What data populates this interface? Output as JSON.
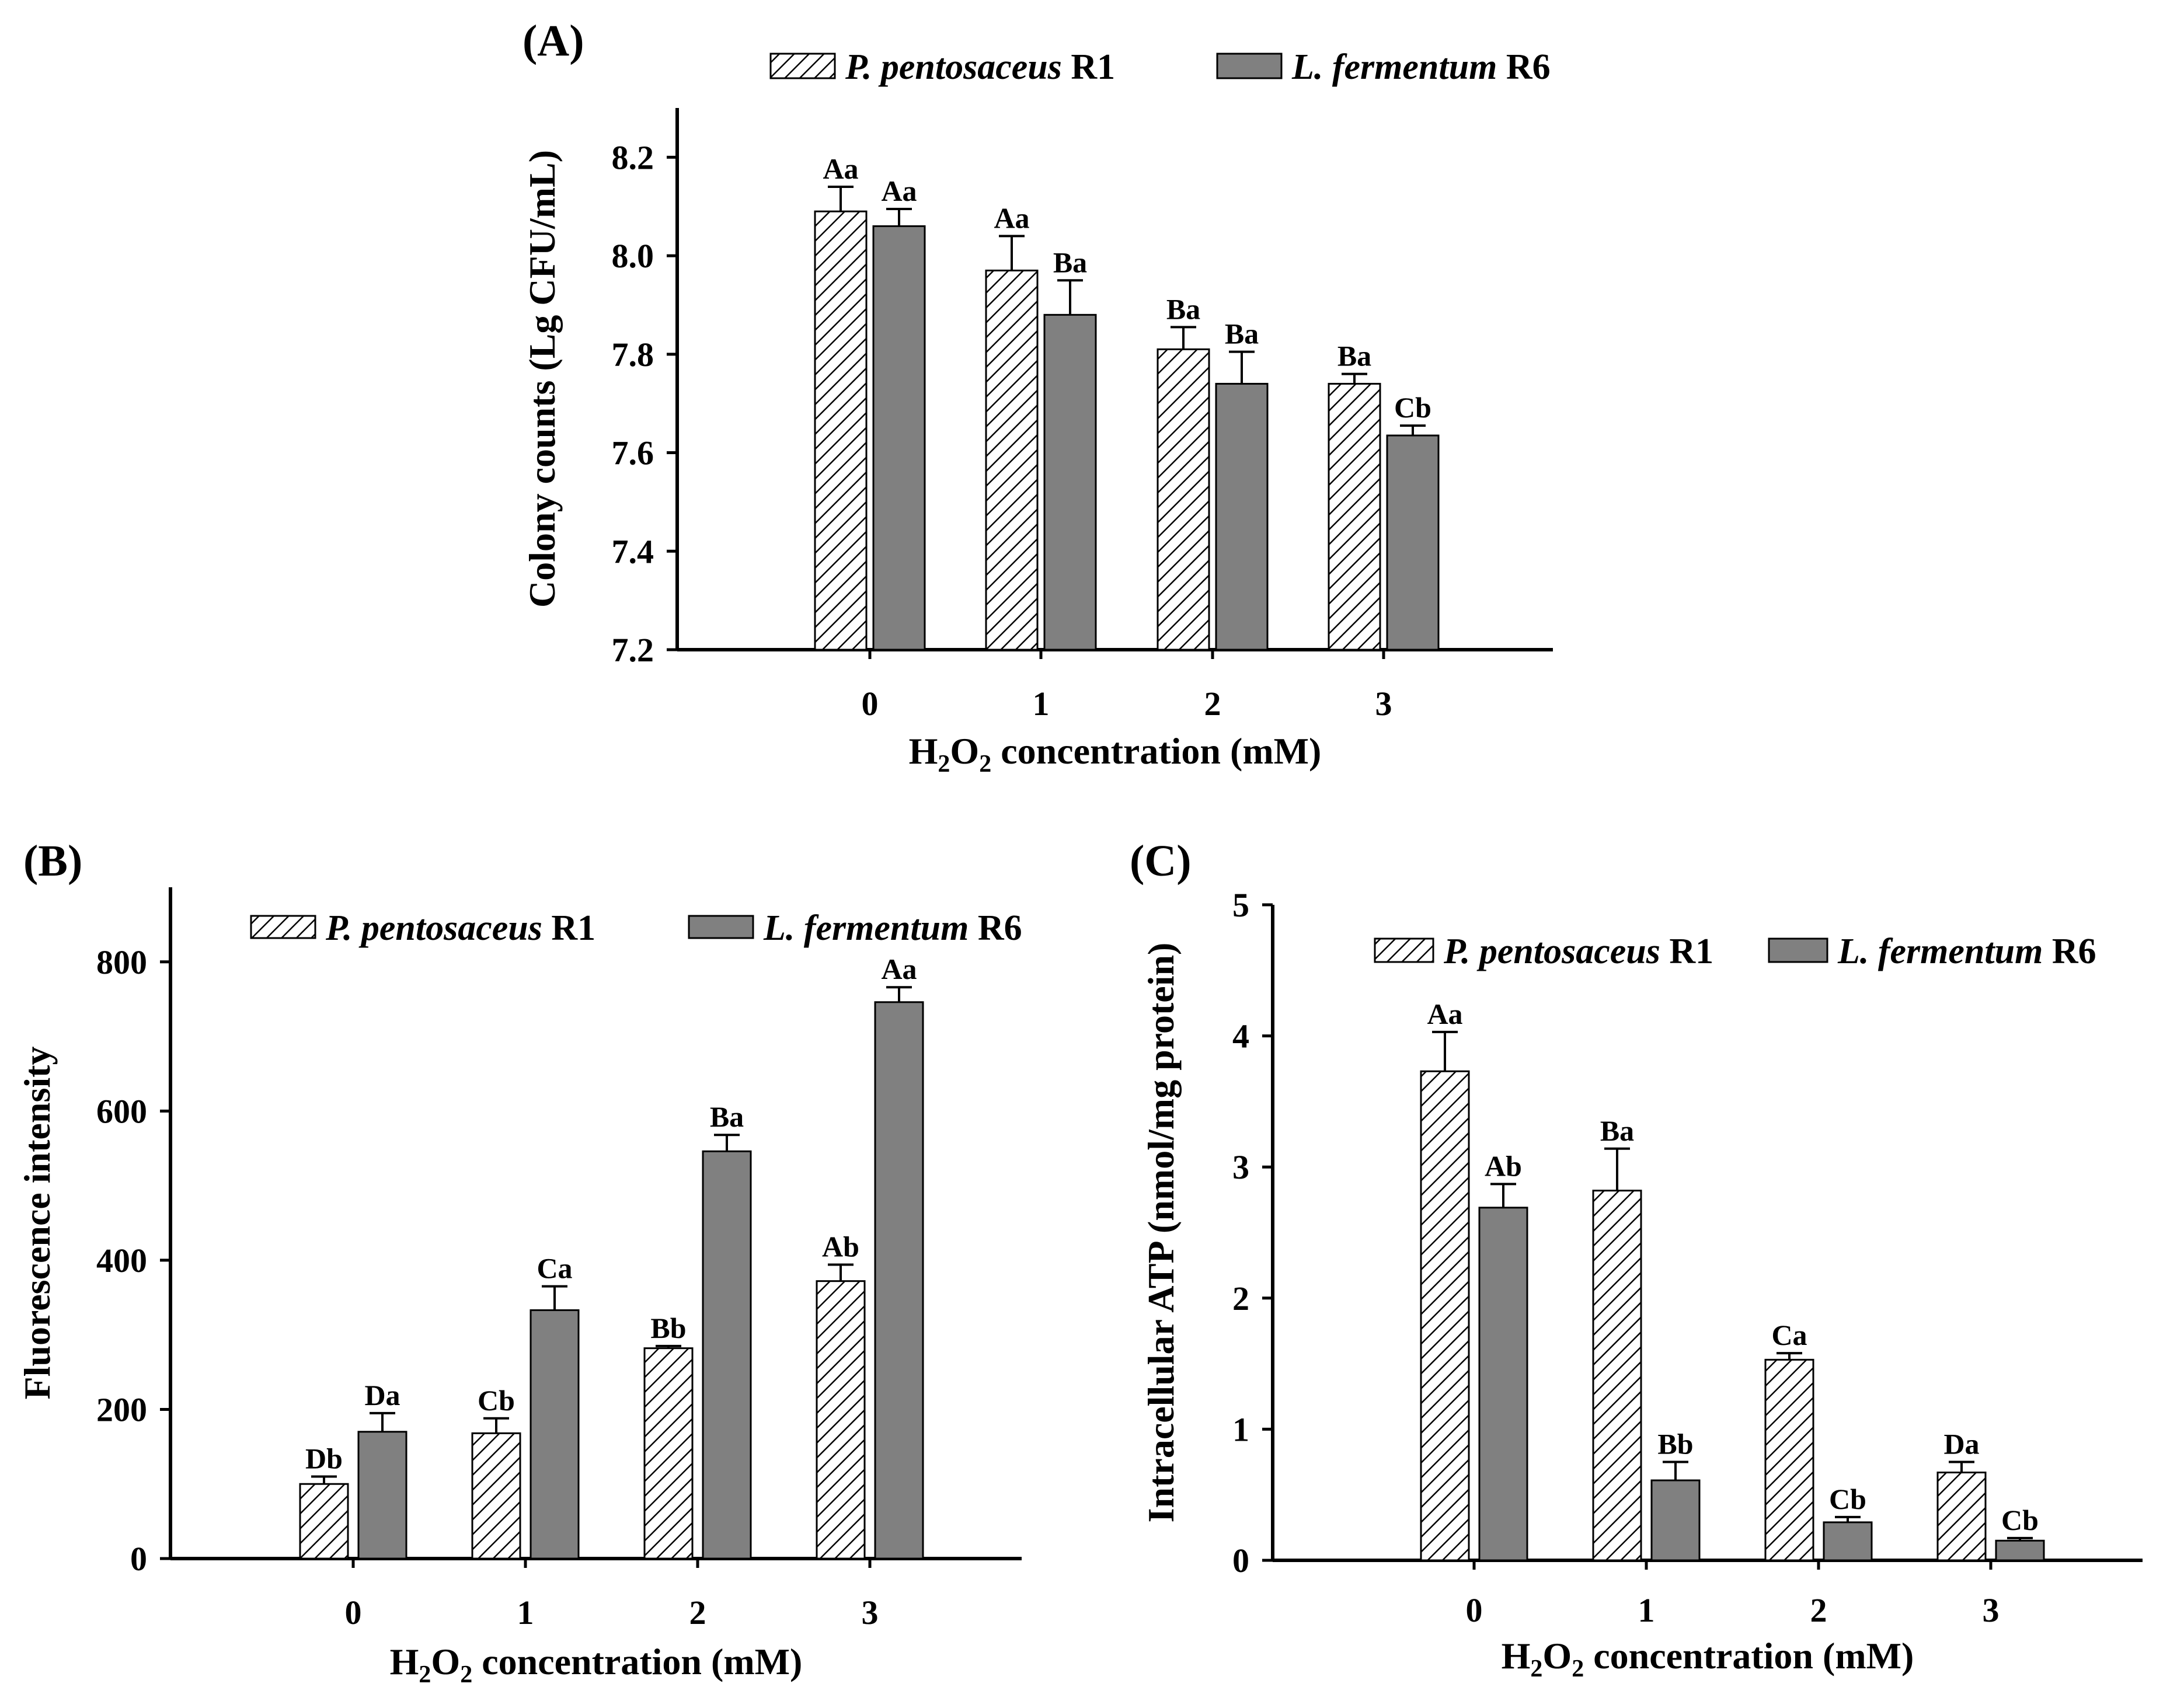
{
  "colors": {
    "series1_fill": "#ffffff",
    "series2_fill": "#808080",
    "stroke": "#000000"
  },
  "chart_data": [
    {
      "type": "bar",
      "panel": "(A)",
      "xlabel_prefix": "H",
      "xlabel_sub1": "2",
      "xlabel_mid": "O",
      "xlabel_sub2": "2",
      "xlabel_suffix": " concentration (mM)",
      "ylabel": "Colony counts (Lg CFU/mL)",
      "categories": [
        "0",
        "1",
        "2",
        "3"
      ],
      "ylim": [
        7.2,
        8.3
      ],
      "yticks": [
        "7.2",
        "7.4",
        "7.6",
        "7.8",
        "8.0",
        "8.2"
      ],
      "legend_position": "top",
      "series": [
        {
          "italic": "P. pentosaceus",
          "suffix": " R1",
          "pattern": "hatch",
          "values": [
            8.09,
            7.97,
            7.81,
            7.74
          ],
          "errors": [
            0.05,
            0.07,
            0.045,
            0.02
          ],
          "labels": [
            "Aa",
            "Aa",
            "Ba",
            "Ba"
          ]
        },
        {
          "italic": "L. fermentum",
          "suffix": " R6",
          "pattern": "solid",
          "values": [
            8.06,
            7.88,
            7.74,
            7.635
          ],
          "errors": [
            0.035,
            0.07,
            0.065,
            0.02
          ],
          "labels": [
            "Aa",
            "Ba",
            "Ba",
            "Cb"
          ]
        }
      ]
    },
    {
      "type": "bar",
      "panel": "(B)",
      "xlabel_prefix": "H",
      "xlabel_sub1": "2",
      "xlabel_mid": "O",
      "xlabel_sub2": "2",
      "xlabel_suffix": " concentration (mM)",
      "ylabel": "Fluorescence intensity",
      "categories": [
        "0",
        "1",
        "2",
        "3"
      ],
      "ylim": [
        0,
        900
      ],
      "yticks": [
        "0",
        "200",
        "400",
        "600",
        "800"
      ],
      "legend_position": "top",
      "series": [
        {
          "italic": "P. pentosaceus",
          "suffix": " R1",
          "pattern": "hatch",
          "values": [
            100,
            168,
            282,
            372
          ],
          "errors": [
            10,
            20,
            3,
            22
          ],
          "labels": [
            "Db",
            "Cb",
            "Bb",
            "Ab"
          ]
        },
        {
          "italic": "L. fermentum",
          "suffix": " R6",
          "pattern": "solid",
          "values": [
            170,
            333,
            546,
            746
          ],
          "errors": [
            25,
            32,
            22,
            20
          ],
          "labels": [
            "Da",
            "Ca",
            "Ba",
            "Aa"
          ]
        }
      ]
    },
    {
      "type": "bar",
      "panel": "(C)",
      "xlabel_prefix": "H",
      "xlabel_sub1": "2",
      "xlabel_mid": "O",
      "xlabel_sub2": "2",
      "xlabel_suffix": " concentration (mM)",
      "ylabel": "Intracellular ATP (nmol/mg protein)",
      "categories": [
        "0",
        "1",
        "2",
        "3"
      ],
      "ylim": [
        0,
        5
      ],
      "yticks": [
        "0",
        "1",
        "2",
        "3",
        "4",
        "5"
      ],
      "legend_position": "top",
      "series": [
        {
          "italic": "P. pentosaceus",
          "suffix": " R1",
          "pattern": "hatch",
          "values": [
            3.73,
            2.82,
            1.53,
            0.67
          ],
          "errors": [
            0.3,
            0.32,
            0.05,
            0.08
          ],
          "labels": [
            "Aa",
            "Ba",
            "Ca",
            "Da"
          ]
        },
        {
          "italic": "L. fermentum",
          "suffix": " R6",
          "pattern": "solid",
          "values": [
            2.69,
            0.61,
            0.29,
            0.15
          ],
          "errors": [
            0.18,
            0.14,
            0.04,
            0.02
          ],
          "labels": [
            "Ab",
            "Bb",
            "Cb",
            "Cb"
          ]
        }
      ]
    }
  ]
}
